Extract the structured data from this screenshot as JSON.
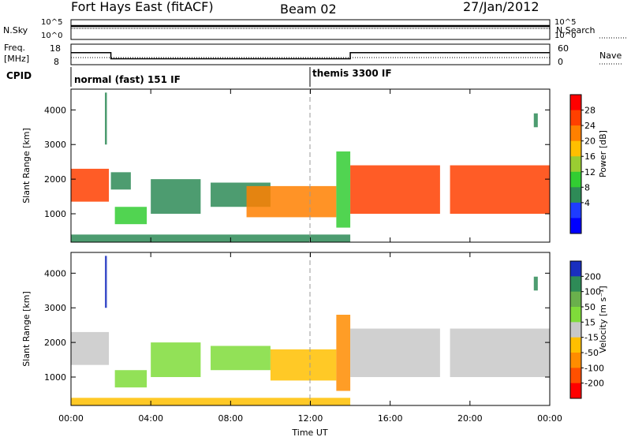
{
  "header": {
    "title": "Fort Hays East (fitACF)",
    "beam": "Beam 02",
    "date": "27/Jan/2012"
  },
  "top_panels": {
    "nsky_label": "N.Sky",
    "nsearch_label": "N.Search",
    "noise_ticks": [
      "10^5",
      "10^0"
    ],
    "freq_label_1": "Freq.",
    "freq_label_2": "[MHz]",
    "freq_ticks": [
      "18",
      "8"
    ],
    "nave_label": "Nave",
    "nave_ticks": [
      "60",
      "0"
    ],
    "cpid_label": "CPID"
  },
  "modes": [
    {
      "name": "normal (fast) 151 IF",
      "start_h": 0
    },
    {
      "name": "themis 3300 IF",
      "start_h": 12
    }
  ],
  "power_colorbar": {
    "label": "Power [dB]",
    "ticks": [
      "28",
      "24",
      "20",
      "16",
      "12",
      "8",
      "4"
    ],
    "colors": [
      "#ff0000",
      "#ff4000",
      "#ff8000",
      "#ffbf00",
      "#9acd32",
      "#32cd32",
      "#2e8b57",
      "#1e3cff",
      "#0000ff"
    ]
  },
  "velocity_colorbar": {
    "label": "Velocity [m s⁻¹]",
    "ticks": [
      "200",
      "100",
      "50",
      "15",
      "-15",
      "-50",
      "-100",
      "-200"
    ],
    "colors": [
      "#1a2fbf",
      "#2e8b57",
      "#6ab04c",
      "#7fdc3a",
      "#c8c8c8",
      "#ffbf00",
      "#ff8c00",
      "#ff5000",
      "#ff0000"
    ]
  },
  "chart_data": {
    "type": "heatmap",
    "xlabel": "Time UT",
    "ylabel": "Slant Range [km]",
    "x_ticks": [
      "00:00",
      "04:00",
      "08:00",
      "12:00",
      "16:00",
      "20:00",
      "00:00"
    ],
    "y_ticks": [
      "1000",
      "2000",
      "3000",
      "4000"
    ],
    "xlim_hours": [
      0,
      24
    ],
    "ylim_km": [
      180,
      4600
    ],
    "power_regions": [
      {
        "t0": 0.0,
        "t1": 1.9,
        "r0": 1350,
        "r1": 2300,
        "level": 24
      },
      {
        "t0": 2.0,
        "t1": 3.0,
        "r0": 1700,
        "r1": 2200,
        "level": 8
      },
      {
        "t0": 2.2,
        "t1": 3.8,
        "r0": 700,
        "r1": 1200,
        "level": 12
      },
      {
        "t0": 4.0,
        "t1": 6.5,
        "r0": 1000,
        "r1": 2000,
        "level": 8
      },
      {
        "t0": 7.0,
        "t1": 10.0,
        "r0": 1200,
        "r1": 1900,
        "level": 8
      },
      {
        "t0": 8.8,
        "t1": 13.3,
        "r0": 900,
        "r1": 1800,
        "level": 20
      },
      {
        "t0": 13.3,
        "t1": 14.0,
        "r0": 600,
        "r1": 2800,
        "level": 12
      },
      {
        "t0": 14.0,
        "t1": 18.5,
        "r0": 1000,
        "r1": 2400,
        "level": 24
      },
      {
        "t0": 19.0,
        "t1": 24.0,
        "r0": 1000,
        "r1": 2400,
        "level": 24
      },
      {
        "t0": 0.0,
        "t1": 14.0,
        "r0": 180,
        "r1": 400,
        "level": 8
      },
      {
        "t0": 1.7,
        "t1": 1.8,
        "r0": 3000,
        "r1": 4500,
        "level": 8
      },
      {
        "t0": 23.2,
        "t1": 23.4,
        "r0": 3500,
        "r1": 3900,
        "level": 8
      }
    ],
    "velocity_regions": [
      {
        "t0": 0.0,
        "t1": 1.9,
        "r0": 1350,
        "r1": 2300,
        "level": 0
      },
      {
        "t0": 4.0,
        "t1": 6.5,
        "r0": 1000,
        "r1": 2000,
        "level": 30
      },
      {
        "t0": 2.2,
        "t1": 3.8,
        "r0": 700,
        "r1": 1200,
        "level": 30
      },
      {
        "t0": 7.0,
        "t1": 10.0,
        "r0": 1200,
        "r1": 1900,
        "level": 30
      },
      {
        "t0": 10.0,
        "t1": 13.3,
        "r0": 900,
        "r1": 1800,
        "level": -40
      },
      {
        "t0": 13.3,
        "t1": 14.0,
        "r0": 600,
        "r1": 2800,
        "level": -60
      },
      {
        "t0": 14.0,
        "t1": 18.5,
        "r0": 1000,
        "r1": 2400,
        "level": 0
      },
      {
        "t0": 19.0,
        "t1": 24.0,
        "r0": 1000,
        "r1": 2400,
        "level": 0
      },
      {
        "t0": 0.0,
        "t1": 14.0,
        "r0": 180,
        "r1": 400,
        "level": -30
      },
      {
        "t0": 1.7,
        "t1": 1.8,
        "r0": 3000,
        "r1": 4500,
        "level": 200
      },
      {
        "t0": 23.2,
        "t1": 23.4,
        "r0": 3500,
        "r1": 3900,
        "level": 100
      }
    ],
    "frequency_series": [
      {
        "t": 0,
        "mhz": 14
      },
      {
        "t": 2,
        "mhz": 14
      },
      {
        "t": 2,
        "mhz": 10.5
      },
      {
        "t": 14,
        "mhz": 10.5
      },
      {
        "t": 14,
        "mhz": 14
      },
      {
        "t": 24,
        "mhz": 14
      }
    ]
  }
}
